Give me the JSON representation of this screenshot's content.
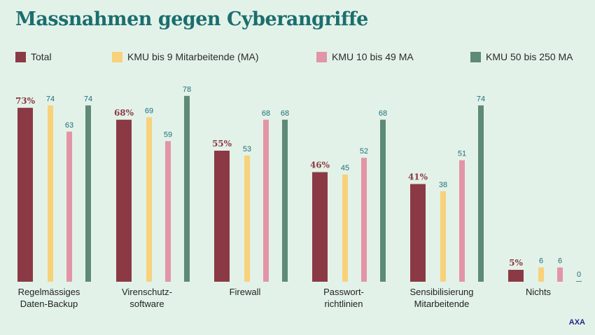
{
  "chart_data": {
    "type": "bar",
    "title": "Massnahmen gegen Cyberangriffe",
    "categories": [
      [
        "Regelmässiges",
        "Daten-Backup"
      ],
      [
        "Virenschutz-",
        "software"
      ],
      [
        "Firewall"
      ],
      [
        "Passwort-",
        "richtlinien"
      ],
      [
        "Sensibilisierung",
        "Mitarbeitende"
      ],
      [
        "Nichts"
      ]
    ],
    "series": [
      {
        "name": "Total",
        "color": "#8b3a45",
        "label_color": "#8b3a45",
        "values": [
          73,
          68,
          55,
          46,
          41,
          5
        ],
        "suffix": "%"
      },
      {
        "name": "KMU bis 9 Mitarbeitende (MA)",
        "color": "#f7d27a",
        "label_color": "#1d6f7a",
        "values": [
          74,
          69,
          53,
          45,
          38,
          6
        ],
        "suffix": ""
      },
      {
        "name": "KMU 10 bis 49 MA",
        "color": "#e295a6",
        "label_color": "#1d6f7a",
        "values": [
          63,
          59,
          68,
          52,
          51,
          6
        ],
        "suffix": ""
      },
      {
        "name": "KMU 50 bis 250 MA",
        "color": "#5e8a77",
        "label_color": "#1d6f7a",
        "values": [
          74,
          78,
          68,
          68,
          74,
          0
        ],
        "suffix": ""
      }
    ],
    "ylim": [
      0,
      100
    ],
    "xlabel": "",
    "ylabel": "",
    "grid": false,
    "legend": "top"
  },
  "source": "AXA"
}
